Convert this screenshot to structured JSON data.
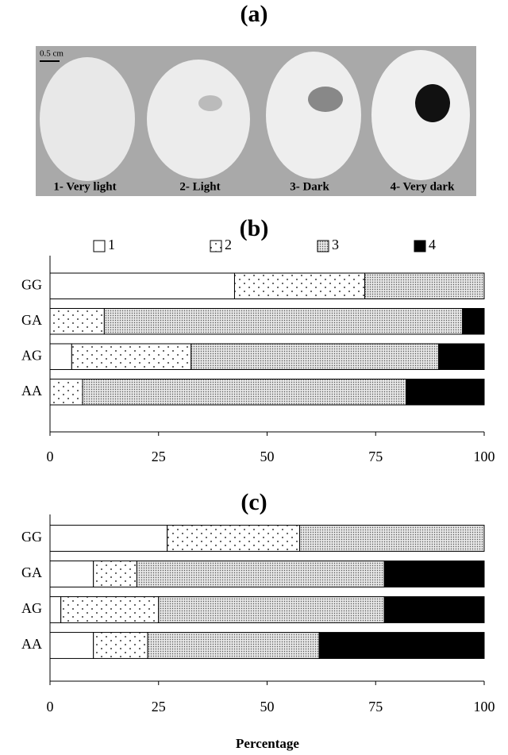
{
  "photo": {
    "label": "(a)",
    "scale": "0.5 cm",
    "captions": [
      "1- Very light",
      "2- Light",
      "3- Dark",
      "4- Very dark"
    ]
  },
  "chart_data": [
    {
      "type": "stacked-bar",
      "orientation": "horizontal",
      "title": "(b)",
      "categories": [
        "GG",
        "GA",
        "AG",
        "AA"
      ],
      "series": [
        {
          "name": "1",
          "color": "#ffffff",
          "pattern": "none",
          "values": [
            42.5,
            0,
            5,
            0
          ]
        },
        {
          "name": "2",
          "color": "#ffffff",
          "pattern": "sparse-dots",
          "values": [
            30,
            12.5,
            27.5,
            7.5
          ]
        },
        {
          "name": "3",
          "color": "#d9d9d9",
          "pattern": "dense-dots",
          "values": [
            27.5,
            82.5,
            57,
            74.5
          ]
        },
        {
          "name": "4",
          "color": "#000000",
          "pattern": "none",
          "values": [
            0,
            5,
            10.5,
            18
          ]
        }
      ],
      "xlim": [
        0,
        100
      ],
      "xticks": [
        0,
        25,
        50,
        75,
        100
      ],
      "legend": "top"
    },
    {
      "type": "stacked-bar",
      "orientation": "horizontal",
      "title": "(c)",
      "xlabel": "Percentage",
      "categories": [
        "GG",
        "GA",
        "AG",
        "AA"
      ],
      "series": [
        {
          "color": "#ffffff",
          "pattern": "none",
          "values": [
            27,
            10,
            2.5,
            10
          ]
        },
        {
          "color": "#ffffff",
          "pattern": "sparse-dots",
          "values": [
            30.5,
            10,
            22.5,
            12.5
          ]
        },
        {
          "color": "#d9d9d9",
          "pattern": "dense-dots",
          "values": [
            42.5,
            57,
            52,
            39.5
          ]
        },
        {
          "color": "#000000",
          "pattern": "none",
          "values": [
            0,
            23,
            23,
            38
          ]
        }
      ],
      "xlim": [
        0,
        100
      ],
      "xticks": [
        0,
        25,
        50,
        75,
        100
      ]
    }
  ]
}
